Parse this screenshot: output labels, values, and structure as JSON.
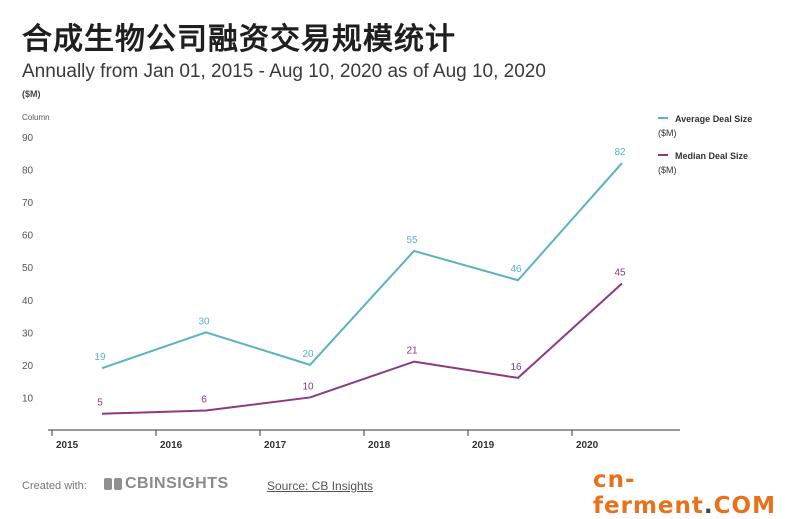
{
  "header": {
    "title": "合成生物公司融资交易规模统计",
    "subtitle": "Annually from Jan 01, 2015 - Aug 10, 2020 as of Aug 10, 2020",
    "unit": "($M)",
    "column_label": "Column"
  },
  "chart_data": {
    "type": "line",
    "title": "合成生物公司融资交易规模统计",
    "categories": [
      "2015",
      "2016",
      "2017",
      "2018",
      "2019",
      "2020"
    ],
    "series": [
      {
        "name": "Average Deal Size",
        "unit": "($M)",
        "color": "#5bb3c2",
        "values": [
          19,
          30,
          20,
          55,
          46,
          82
        ]
      },
      {
        "name": "Median Deal Size",
        "unit": "($M)",
        "color": "#8e3a83",
        "values": [
          5,
          6,
          10,
          21,
          16,
          45
        ]
      }
    ],
    "y_ticks": [
      10,
      20,
      30,
      40,
      50,
      60,
      70,
      80,
      90
    ],
    "ylim": [
      0,
      90
    ],
    "ylabel": "($M)",
    "xlabel": "",
    "grid": false,
    "legend_position": "top-right"
  },
  "footer": {
    "created_with": "Created with:",
    "logo_text": "CBINSIGHTS",
    "source": "Source: CB Insights"
  },
  "watermark": {
    "main": "cn-ferment",
    "dot": ".",
    "tld": "COM"
  }
}
